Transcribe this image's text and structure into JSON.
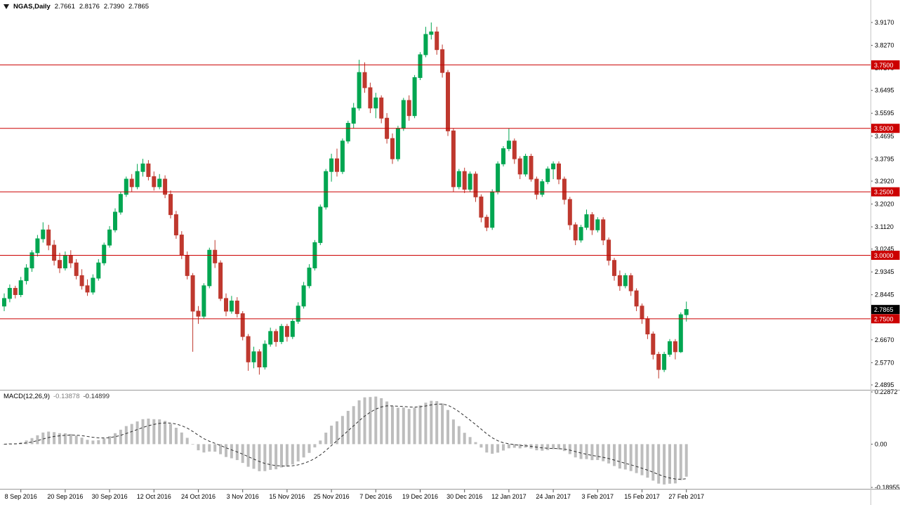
{
  "header": {
    "symbol_period": "NGAS,Daily",
    "open": "2.7661",
    "high": "2.8176",
    "low": "2.7390",
    "close": "2.7865"
  },
  "macd_header": {
    "name": "MACD(12,26,9)",
    "main_value": "-0.13878",
    "signal_value": "-0.14899"
  },
  "hlines": [
    {
      "value": 3.75,
      "label": "3.7500"
    },
    {
      "value": 3.5,
      "label": "3.5000"
    },
    {
      "value": 3.25,
      "label": "3.2500"
    },
    {
      "value": 3.0,
      "label": "3.0000"
    },
    {
      "value": 2.75,
      "label": "2.7500"
    }
  ],
  "current_price": {
    "value": 2.7865,
    "label": "2.7865"
  },
  "time_axis": {
    "labels": [
      {
        "text": "8 Sep 2016",
        "i": 3
      },
      {
        "text": "20 Sep 2016",
        "i": 11
      },
      {
        "text": "30 Sep 2016",
        "i": 19
      },
      {
        "text": "12 Oct 2016",
        "i": 27
      },
      {
        "text": "24 Oct 2016",
        "i": 35
      },
      {
        "text": "3 Nov 2016",
        "i": 43
      },
      {
        "text": "15 Nov 2016",
        "i": 51
      },
      {
        "text": "25 Nov 2016",
        "i": 59
      },
      {
        "text": "7 Dec 2016",
        "i": 67
      },
      {
        "text": "19 Dec 2016",
        "i": 75
      },
      {
        "text": "30 Dec 2016",
        "i": 83
      },
      {
        "text": "12 Jan 2017",
        "i": 91
      },
      {
        "text": "24 Jan 2017",
        "i": 99
      },
      {
        "text": "3 Feb 2017",
        "i": 107
      },
      {
        "text": "15 Feb 2017",
        "i": 115
      },
      {
        "text": "27 Feb 2017",
        "i": 123
      }
    ]
  },
  "colors": {
    "background": "#ffffff",
    "bull": "#00a651",
    "bear": "#bf382e",
    "hline": "#cc0000",
    "current_badge": "#000000",
    "separator": "#9a9a9a",
    "axis_border": "#c8c8c8",
    "tick": "#555555",
    "axis_text": "#000000",
    "macd_hist": "#bdbdbd",
    "macd_signal": "#2e2e2e"
  },
  "chart_data": {
    "type": "candlestick",
    "symbol": "NGAS",
    "timeframe": "Daily",
    "title": "NGAS,Daily",
    "price_axis": {
      "top": 3.917,
      "bottom": 2.4895,
      "labels": [
        "3.9170",
        "3.8270",
        "3.7370",
        "3.6495",
        "3.5595",
        "3.4695",
        "3.3795",
        "3.2920",
        "3.2020",
        "3.1120",
        "3.0245",
        "2.9345",
        "2.8445",
        "2.7545",
        "2.6670",
        "2.5770",
        "2.4895"
      ]
    },
    "last_ohlc": {
      "open": 2.7661,
      "high": 2.8176,
      "low": 2.739,
      "close": 2.7865
    },
    "candles": [
      [
        2.8,
        2.85,
        2.78,
        2.83
      ],
      [
        2.83,
        2.885,
        2.815,
        2.87
      ],
      [
        2.87,
        2.88,
        2.83,
        2.845
      ],
      [
        2.845,
        2.915,
        2.835,
        2.9
      ],
      [
        2.9,
        2.965,
        2.885,
        2.95
      ],
      [
        2.95,
        3.02,
        2.935,
        3.01
      ],
      [
        3.01,
        3.08,
        2.995,
        3.065
      ],
      [
        3.065,
        3.13,
        3.05,
        3.1
      ],
      [
        3.1,
        3.12,
        3.02,
        3.04
      ],
      [
        3.04,
        3.06,
        2.96,
        2.98
      ],
      [
        2.98,
        3.01,
        2.93,
        2.95
      ],
      [
        2.95,
        3.015,
        2.94,
        3.0
      ],
      [
        3.0,
        3.02,
        2.95,
        2.97
      ],
      [
        2.97,
        2.985,
        2.905,
        2.92
      ],
      [
        2.92,
        2.945,
        2.865,
        2.88
      ],
      [
        2.88,
        2.905,
        2.84,
        2.855
      ],
      [
        2.855,
        2.925,
        2.845,
        2.91
      ],
      [
        2.91,
        2.985,
        2.9,
        2.97
      ],
      [
        2.97,
        3.05,
        2.96,
        3.04
      ],
      [
        3.04,
        3.115,
        3.03,
        3.1
      ],
      [
        3.1,
        3.185,
        3.09,
        3.17
      ],
      [
        3.17,
        3.25,
        3.16,
        3.24
      ],
      [
        3.24,
        3.31,
        3.23,
        3.3
      ],
      [
        3.3,
        3.32,
        3.25,
        3.27
      ],
      [
        3.27,
        3.36,
        3.26,
        3.33
      ],
      [
        3.33,
        3.38,
        3.31,
        3.36
      ],
      [
        3.36,
        3.375,
        3.295,
        3.31
      ],
      [
        3.31,
        3.33,
        3.255,
        3.27
      ],
      [
        3.27,
        3.32,
        3.26,
        3.3
      ],
      [
        3.3,
        3.315,
        3.225,
        3.24
      ],
      [
        3.24,
        3.255,
        3.145,
        3.16
      ],
      [
        3.16,
        3.175,
        3.065,
        3.08
      ],
      [
        3.08,
        3.095,
        2.985,
        3.0
      ],
      [
        3.0,
        3.015,
        2.905,
        2.92
      ],
      [
        2.92,
        2.93,
        2.62,
        2.78
      ],
      [
        2.78,
        2.8,
        2.73,
        2.76
      ],
      [
        2.76,
        2.89,
        2.75,
        2.88
      ],
      [
        2.88,
        3.03,
        2.87,
        3.02
      ],
      [
        3.02,
        3.06,
        2.95,
        2.97
      ],
      [
        2.97,
        2.98,
        2.82,
        2.83
      ],
      [
        2.83,
        2.85,
        2.76,
        2.78
      ],
      [
        2.78,
        2.84,
        2.77,
        2.82
      ],
      [
        2.82,
        2.835,
        2.755,
        2.77
      ],
      [
        2.77,
        2.78,
        2.665,
        2.68
      ],
      [
        2.68,
        2.69,
        2.545,
        2.58
      ],
      [
        2.58,
        2.64,
        2.555,
        2.62
      ],
      [
        2.62,
        2.63,
        2.53,
        2.56
      ],
      [
        2.56,
        2.665,
        2.55,
        2.65
      ],
      [
        2.65,
        2.715,
        2.64,
        2.7
      ],
      [
        2.7,
        2.71,
        2.64,
        2.66
      ],
      [
        2.66,
        2.73,
        2.65,
        2.72
      ],
      [
        2.72,
        2.73,
        2.66,
        2.68
      ],
      [
        2.68,
        2.75,
        2.67,
        2.74
      ],
      [
        2.74,
        2.815,
        2.73,
        2.8
      ],
      [
        2.8,
        2.895,
        2.79,
        2.88
      ],
      [
        2.88,
        2.965,
        2.87,
        2.95
      ],
      [
        2.95,
        3.06,
        2.94,
        3.05
      ],
      [
        3.05,
        3.2,
        3.04,
        3.19
      ],
      [
        3.19,
        3.34,
        3.18,
        3.33
      ],
      [
        3.33,
        3.4,
        3.29,
        3.38
      ],
      [
        3.38,
        3.42,
        3.31,
        3.33
      ],
      [
        3.33,
        3.46,
        3.32,
        3.45
      ],
      [
        3.45,
        3.53,
        3.44,
        3.52
      ],
      [
        3.52,
        3.6,
        3.5,
        3.58
      ],
      [
        3.58,
        3.77,
        3.57,
        3.72
      ],
      [
        3.72,
        3.76,
        3.64,
        3.66
      ],
      [
        3.66,
        3.68,
        3.56,
        3.58
      ],
      [
        3.58,
        3.64,
        3.54,
        3.62
      ],
      [
        3.62,
        3.63,
        3.52,
        3.54
      ],
      [
        3.54,
        3.56,
        3.44,
        3.46
      ],
      [
        3.46,
        3.48,
        3.36,
        3.38
      ],
      [
        3.38,
        3.51,
        3.37,
        3.5
      ],
      [
        3.5,
        3.62,
        3.49,
        3.61
      ],
      [
        3.61,
        3.63,
        3.53,
        3.55
      ],
      [
        3.55,
        3.71,
        3.54,
        3.7
      ],
      [
        3.7,
        3.8,
        3.69,
        3.79
      ],
      [
        3.79,
        3.9,
        3.78,
        3.87
      ],
      [
        3.87,
        3.917,
        3.85,
        3.88
      ],
      [
        3.88,
        3.9,
        3.79,
        3.81
      ],
      [
        3.81,
        3.83,
        3.7,
        3.72
      ],
      [
        3.72,
        3.73,
        3.47,
        3.49
      ],
      [
        3.49,
        3.5,
        3.25,
        3.27
      ],
      [
        3.27,
        3.34,
        3.26,
        3.33
      ],
      [
        3.33,
        3.345,
        3.245,
        3.26
      ],
      [
        3.26,
        3.33,
        3.25,
        3.32
      ],
      [
        3.32,
        3.33,
        3.21,
        3.23
      ],
      [
        3.23,
        3.24,
        3.13,
        3.15
      ],
      [
        3.15,
        3.16,
        3.095,
        3.11
      ],
      [
        3.11,
        3.26,
        3.1,
        3.25
      ],
      [
        3.25,
        3.37,
        3.24,
        3.36
      ],
      [
        3.36,
        3.43,
        3.35,
        3.42
      ],
      [
        3.42,
        3.5,
        3.41,
        3.45
      ],
      [
        3.45,
        3.46,
        3.36,
        3.38
      ],
      [
        3.38,
        3.39,
        3.3,
        3.32
      ],
      [
        3.32,
        3.4,
        3.31,
        3.39
      ],
      [
        3.39,
        3.4,
        3.29,
        3.3
      ],
      [
        3.3,
        3.31,
        3.22,
        3.24
      ],
      [
        3.24,
        3.3,
        3.23,
        3.29
      ],
      [
        3.29,
        3.35,
        3.28,
        3.34
      ],
      [
        3.34,
        3.37,
        3.3,
        3.36
      ],
      [
        3.36,
        3.37,
        3.28,
        3.3
      ],
      [
        3.3,
        3.31,
        3.2,
        3.22
      ],
      [
        3.22,
        3.23,
        3.1,
        3.12
      ],
      [
        3.12,
        3.13,
        3.04,
        3.06
      ],
      [
        3.06,
        3.12,
        3.05,
        3.11
      ],
      [
        3.11,
        3.18,
        3.1,
        3.16
      ],
      [
        3.16,
        3.17,
        3.08,
        3.1
      ],
      [
        3.1,
        3.15,
        3.09,
        3.14
      ],
      [
        3.14,
        3.15,
        3.04,
        3.06
      ],
      [
        3.06,
        3.07,
        2.96,
        2.98
      ],
      [
        2.98,
        2.99,
        2.9,
        2.92
      ],
      [
        2.92,
        2.94,
        2.86,
        2.88
      ],
      [
        2.88,
        2.93,
        2.87,
        2.92
      ],
      [
        2.92,
        2.93,
        2.84,
        2.86
      ],
      [
        2.86,
        2.87,
        2.78,
        2.8
      ],
      [
        2.8,
        2.81,
        2.73,
        2.75
      ],
      [
        2.75,
        2.76,
        2.67,
        2.69
      ],
      [
        2.69,
        2.7,
        2.59,
        2.61
      ],
      [
        2.61,
        2.62,
        2.515,
        2.55
      ],
      [
        2.55,
        2.62,
        2.54,
        2.61
      ],
      [
        2.61,
        2.67,
        2.6,
        2.66
      ],
      [
        2.66,
        2.67,
        2.59,
        2.62
      ],
      [
        2.62,
        2.775,
        2.615,
        2.766
      ],
      [
        2.7661,
        2.8176,
        2.739,
        2.7865
      ]
    ],
    "macd": {
      "fast": 12,
      "slow": 26,
      "signal": 9,
      "main_value": -0.13878,
      "signal_value": -0.14899,
      "max": 0.22872,
      "min": -0.18955,
      "axis_labels": [
        "0.22872",
        "0.00",
        "-0.18955"
      ]
    }
  }
}
